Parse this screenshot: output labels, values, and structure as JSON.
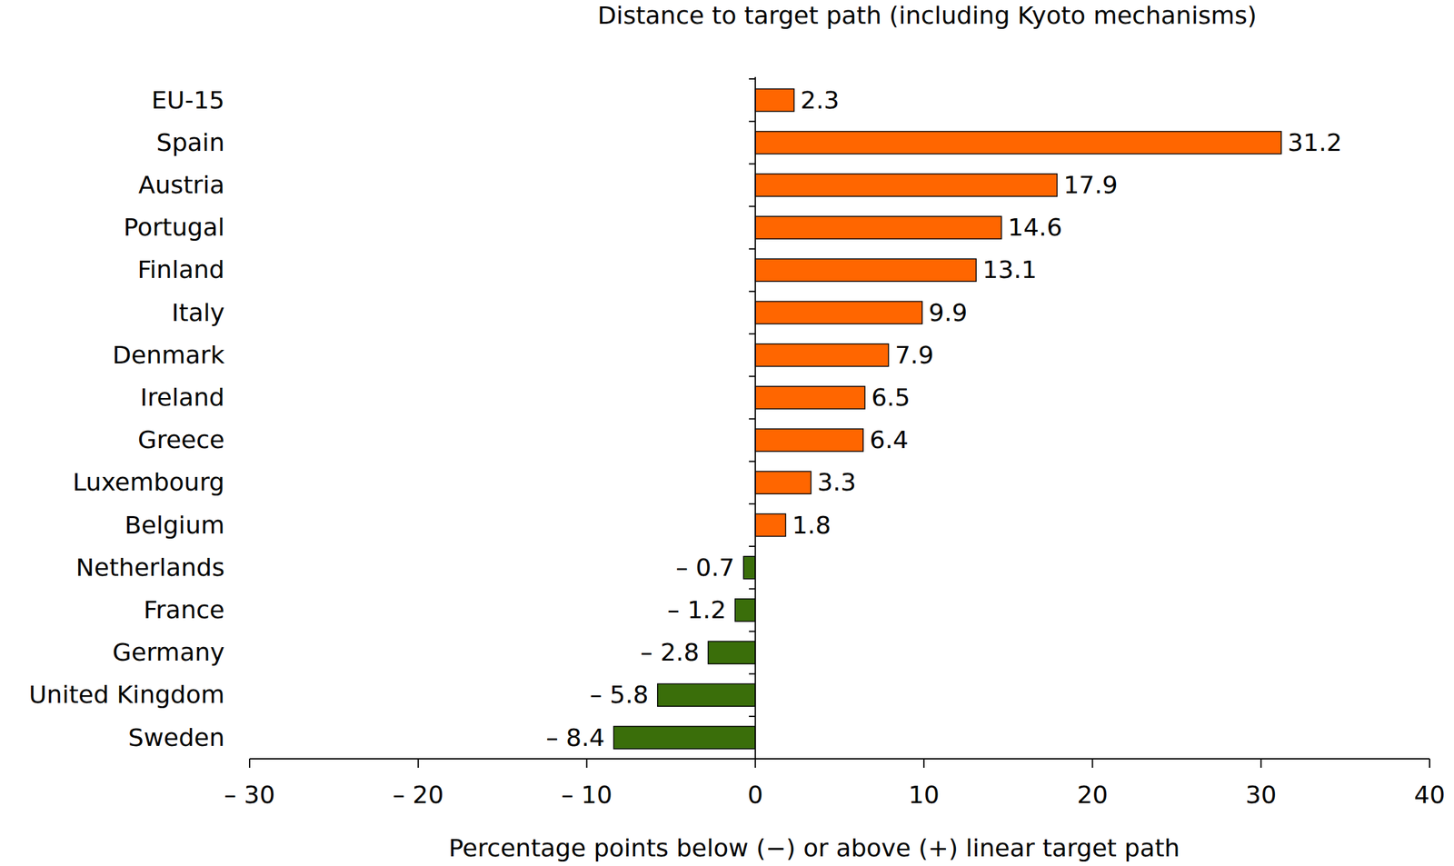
{
  "chart_data": {
    "type": "bar",
    "orientation": "horizontal",
    "title": "Distance to target path (including Kyoto mechanisms)",
    "x_label": "Percentage points below (−) or above (+) linear target path",
    "categories": [
      "EU-15",
      "Spain",
      "Austria",
      "Portugal",
      "Finland",
      "Italy",
      "Denmark",
      "Ireland",
      "Greece",
      "Luxembourg",
      "Belgium",
      "Netherlands",
      "France",
      "Germany",
      "United Kingdom",
      "Sweden"
    ],
    "values": [
      2.3,
      31.2,
      17.9,
      14.6,
      13.1,
      9.9,
      7.9,
      6.5,
      6.4,
      3.3,
      1.8,
      -0.7,
      -1.2,
      -2.8,
      -5.8,
      -8.4
    ],
    "value_labels": [
      "2.3",
      "31.2",
      "17.9",
      "14.6",
      "13.1",
      "9.9",
      "7.9",
      "6.5",
      "6.4",
      "3.3",
      "1.8",
      "– 0.7",
      "– 1.2",
      "– 2.8",
      "– 5.8",
      "– 8.4"
    ],
    "colors": [
      "#ff6600",
      "#ff6600",
      "#ff6600",
      "#ff6600",
      "#ff6600",
      "#ff6600",
      "#ff6600",
      "#ff6600",
      "#ff6600",
      "#ff6600",
      "#ff6600",
      "#3a6e0a",
      "#3a6e0a",
      "#3a6e0a",
      "#3a6e0a",
      "#3a6e0a"
    ],
    "xlim": [
      -30,
      40
    ],
    "xticks": [
      {
        "value": -30,
        "label": "– 30"
      },
      {
        "value": -20,
        "label": "– 20"
      },
      {
        "value": -10,
        "label": "– 10"
      },
      0,
      10,
      20,
      30,
      40
    ],
    "data_labels": true,
    "grid": false
  }
}
